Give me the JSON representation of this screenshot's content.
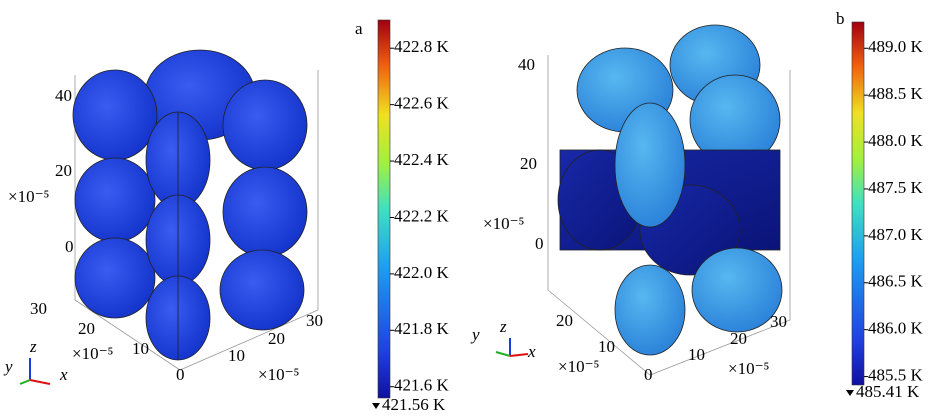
{
  "panels": [
    {
      "label": "a",
      "colorbar": {
        "max": 422.9,
        "ticks": [
          {
            "value": 422.8,
            "label": "422.8 K"
          },
          {
            "value": 422.6,
            "label": "422.6 K"
          },
          {
            "value": 422.4,
            "label": "422.4 K"
          },
          {
            "value": 422.2,
            "label": "422.2 K"
          },
          {
            "value": 422.0,
            "label": "422.0 K"
          },
          {
            "value": 421.8,
            "label": "421.8 K"
          },
          {
            "value": 421.6,
            "label": "421.6 K"
          }
        ],
        "min_label": {
          "value": 421.56,
          "label": "421.56 K"
        }
      },
      "z_ticks": [
        "40",
        "20",
        "0"
      ],
      "z_unit": "×10⁻⁵",
      "y_ticks": [
        "30",
        "20",
        "10"
      ],
      "y_unit": "×10⁻⁵",
      "x_ticks": [
        "0",
        "10",
        "20",
        "30"
      ],
      "x_unit": "×10⁻⁵",
      "triad": {
        "z": "z",
        "y": "y",
        "x": "x"
      }
    },
    {
      "label": "b",
      "colorbar": {
        "max": 489.28,
        "ticks": [
          {
            "value": 489.0,
            "label": "489.0 K"
          },
          {
            "value": 488.5,
            "label": "488.5 K"
          },
          {
            "value": 488.0,
            "label": "488.0 K"
          },
          {
            "value": 487.5,
            "label": "487.5 K"
          },
          {
            "value": 487.0,
            "label": "487.0 K"
          },
          {
            "value": 486.5,
            "label": "486.5 K"
          },
          {
            "value": 486.0,
            "label": "486.0 K"
          },
          {
            "value": 485.5,
            "label": "485.5 K"
          }
        ],
        "min_label": {
          "value": 485.41,
          "label": "485.41 K"
        }
      },
      "z_ticks": [
        "40",
        "20",
        "0"
      ],
      "z_unit": "×10⁻⁵",
      "y_ticks": [
        "20",
        "10"
      ],
      "y_unit": "×10⁻⁵",
      "x_ticks": [
        "0",
        "10",
        "20",
        "30"
      ],
      "x_unit": "×10⁻⁵",
      "triad": {
        "z": "z",
        "y": "y",
        "x": "x"
      }
    }
  ]
}
